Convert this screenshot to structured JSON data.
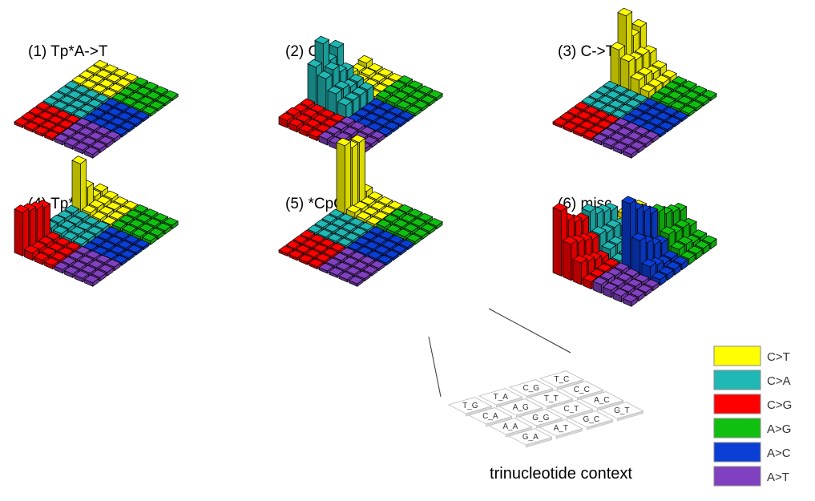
{
  "chart_data": {
    "type": "bar",
    "mutation_types": [
      "C>T",
      "C>A",
      "C>G",
      "A>G",
      "A>C",
      "A>T"
    ],
    "contexts": [
      "T_G",
      "T_A",
      "C_G",
      "T_C",
      "C_A",
      "A_G",
      "T_T",
      "C_C",
      "A_A",
      "G_G",
      "C_T",
      "A_C",
      "G_A",
      "A_T",
      "G_C",
      "G_T"
    ],
    "panels": [
      {
        "title": "(1) Tp*A->T",
        "values": {
          "C>T": [
            0.03,
            0.03,
            0.03,
            0.03,
            0.03,
            0.03,
            0.03,
            0.03,
            0.03,
            0.03,
            0.03,
            0.03,
            0.03,
            0.03,
            0.03,
            0.03
          ],
          "C>A": [
            0.03,
            0.03,
            0.03,
            0.03,
            0.03,
            0.03,
            0.03,
            0.03,
            0.03,
            0.03,
            0.03,
            0.03,
            0.03,
            0.03,
            0.03,
            0.03
          ],
          "C>G": [
            0.03,
            0.03,
            0.03,
            0.03,
            0.03,
            0.03,
            0.03,
            0.03,
            0.03,
            0.03,
            0.03,
            0.03,
            0.03,
            0.03,
            0.03,
            0.03
          ],
          "A>G": [
            0.03,
            0.03,
            0.03,
            0.03,
            0.03,
            0.03,
            0.03,
            0.03,
            0.03,
            0.03,
            0.03,
            0.03,
            0.03,
            0.03,
            0.03,
            0.03
          ],
          "A>C": [
            0.03,
            0.03,
            0.03,
            0.03,
            0.03,
            0.03,
            0.03,
            0.03,
            0.03,
            0.03,
            0.03,
            0.03,
            0.03,
            0.03,
            0.03,
            0.03
          ],
          "A>T": [
            0.05,
            0.05,
            0.05,
            0.05,
            0.05,
            0.05,
            0.05,
            0.05,
            0.05,
            0.05,
            0.05,
            0.05,
            0.05,
            0.05,
            0.05,
            0.05
          ]
        }
      },
      {
        "title": "(2) C->A",
        "values": {
          "C>T": [
            0.08,
            0.1,
            0.06,
            0.1,
            0.06,
            0.05,
            0.06,
            0.05,
            0.05,
            0.04,
            0.04,
            0.04,
            0.03,
            0.03,
            0.03,
            0.03
          ],
          "C>A": [
            0.55,
            0.8,
            0.5,
            0.6,
            0.45,
            0.5,
            0.4,
            0.35,
            0.3,
            0.3,
            0.25,
            0.25,
            0.2,
            0.2,
            0.2,
            0.2
          ],
          "C>G": [
            0.1,
            0.1,
            0.08,
            0.08,
            0.08,
            0.07,
            0.07,
            0.06,
            0.06,
            0.06,
            0.05,
            0.05,
            0.05,
            0.05,
            0.05,
            0.05
          ],
          "A>G": [
            0.07,
            0.07,
            0.06,
            0.06,
            0.06,
            0.05,
            0.05,
            0.05,
            0.05,
            0.04,
            0.04,
            0.04,
            0.04,
            0.04,
            0.04,
            0.04
          ],
          "A>C": [
            0.03,
            0.03,
            0.03,
            0.03,
            0.03,
            0.03,
            0.03,
            0.03,
            0.03,
            0.03,
            0.03,
            0.03,
            0.03,
            0.03,
            0.03,
            0.03
          ],
          "A>T": [
            0.08,
            0.08,
            0.07,
            0.07,
            0.07,
            0.06,
            0.06,
            0.06,
            0.06,
            0.05,
            0.05,
            0.05,
            0.05,
            0.05,
            0.05,
            0.05
          ]
        }
      },
      {
        "title": "(3) C->T",
        "values": {
          "C>T": [
            0.5,
            0.9,
            0.55,
            0.6,
            0.4,
            0.35,
            0.35,
            0.3,
            0.2,
            0.2,
            0.15,
            0.15,
            0.1,
            0.1,
            0.08,
            0.08
          ],
          "C>A": [
            0.03,
            0.03,
            0.03,
            0.03,
            0.03,
            0.03,
            0.03,
            0.03,
            0.03,
            0.03,
            0.03,
            0.03,
            0.03,
            0.03,
            0.03,
            0.03
          ],
          "C>G": [
            0.03,
            0.03,
            0.03,
            0.03,
            0.03,
            0.03,
            0.03,
            0.03,
            0.03,
            0.03,
            0.03,
            0.03,
            0.03,
            0.03,
            0.03,
            0.03
          ],
          "A>G": [
            0.05,
            0.05,
            0.05,
            0.05,
            0.05,
            0.05,
            0.05,
            0.05,
            0.04,
            0.04,
            0.04,
            0.04,
            0.04,
            0.04,
            0.04,
            0.04
          ],
          "A>C": [
            0.03,
            0.03,
            0.03,
            0.03,
            0.03,
            0.03,
            0.03,
            0.03,
            0.03,
            0.03,
            0.03,
            0.03,
            0.03,
            0.03,
            0.03,
            0.03
          ],
          "A>T": [
            0.05,
            0.05,
            0.05,
            0.05,
            0.05,
            0.05,
            0.05,
            0.05,
            0.05,
            0.05,
            0.05,
            0.05,
            0.05,
            0.05,
            0.05,
            0.05
          ]
        }
      },
      {
        "title": "(4) Tp*C->mut",
        "values": {
          "C>T": [
            0.7,
            0.3,
            0.1,
            0.1,
            0.08,
            0.08,
            0.06,
            0.06,
            0.05,
            0.05,
            0.04,
            0.04,
            0.04,
            0.04,
            0.04,
            0.04
          ],
          "C>A": [
            0.1,
            0.1,
            0.09,
            0.09,
            0.08,
            0.08,
            0.07,
            0.07,
            0.06,
            0.06,
            0.05,
            0.05,
            0.05,
            0.05,
            0.05,
            0.05
          ],
          "C>G": [
            0.6,
            0.55,
            0.5,
            0.45,
            0.1,
            0.08,
            0.08,
            0.07,
            0.06,
            0.06,
            0.05,
            0.05,
            0.05,
            0.05,
            0.05,
            0.05
          ],
          "A>G": [
            0.05,
            0.05,
            0.05,
            0.05,
            0.05,
            0.05,
            0.05,
            0.05,
            0.05,
            0.05,
            0.05,
            0.05,
            0.05,
            0.05,
            0.05,
            0.05
          ],
          "A>C": [
            0.03,
            0.03,
            0.03,
            0.03,
            0.03,
            0.03,
            0.03,
            0.03,
            0.03,
            0.03,
            0.03,
            0.03,
            0.03,
            0.03,
            0.03,
            0.03
          ],
          "A>T": [
            0.05,
            0.05,
            0.05,
            0.05,
            0.05,
            0.05,
            0.05,
            0.05,
            0.05,
            0.05,
            0.05,
            0.05,
            0.05,
            0.05,
            0.05,
            0.05
          ]
        }
      },
      {
        "title": "(5) *CpG->T",
        "values": {
          "C>T": [
            0.95,
            0.85,
            0.85,
            0.1,
            0.08,
            0.06,
            0.05,
            0.05,
            0.05,
            0.04,
            0.04,
            0.04,
            0.04,
            0.04,
            0.04,
            0.04
          ],
          "C>A": [
            0.03,
            0.03,
            0.03,
            0.03,
            0.03,
            0.03,
            0.03,
            0.03,
            0.03,
            0.03,
            0.03,
            0.03,
            0.03,
            0.03,
            0.03,
            0.03
          ],
          "C>G": [
            0.03,
            0.03,
            0.03,
            0.03,
            0.03,
            0.03,
            0.03,
            0.03,
            0.03,
            0.03,
            0.03,
            0.03,
            0.03,
            0.03,
            0.03,
            0.03
          ],
          "A>G": [
            0.06,
            0.06,
            0.06,
            0.05,
            0.05,
            0.05,
            0.05,
            0.05,
            0.05,
            0.05,
            0.05,
            0.05,
            0.04,
            0.04,
            0.04,
            0.04
          ],
          "A>C": [
            0.03,
            0.03,
            0.03,
            0.03,
            0.03,
            0.03,
            0.03,
            0.03,
            0.03,
            0.03,
            0.03,
            0.03,
            0.03,
            0.03,
            0.03,
            0.03
          ],
          "A>T": [
            0.03,
            0.03,
            0.03,
            0.03,
            0.03,
            0.03,
            0.03,
            0.03,
            0.03,
            0.03,
            0.03,
            0.03,
            0.03,
            0.03,
            0.03,
            0.03
          ]
        }
      },
      {
        "title": "(6) misc",
        "values": {
          "C>T": [
            0.15,
            0.2,
            0.18,
            0.15,
            0.12,
            0.1,
            0.12,
            0.1,
            0.1,
            0.08,
            0.08,
            0.07,
            0.06,
            0.06,
            0.05,
            0.05
          ],
          "C>A": [
            0.6,
            0.5,
            0.45,
            0.4,
            0.35,
            0.3,
            0.3,
            0.25,
            0.2,
            0.2,
            0.15,
            0.15,
            0.1,
            0.1,
            0.1,
            0.1
          ],
          "C>G": [
            0.9,
            0.7,
            0.6,
            0.55,
            0.5,
            0.45,
            0.4,
            0.35,
            0.3,
            0.25,
            0.2,
            0.15,
            0.1,
            0.1,
            0.1,
            0.1
          ],
          "A>G": [
            0.55,
            0.45,
            0.4,
            0.35,
            0.3,
            0.25,
            0.25,
            0.2,
            0.15,
            0.15,
            0.1,
            0.1,
            0.08,
            0.08,
            0.08,
            0.08
          ],
          "A>C": [
            0.95,
            0.8,
            0.7,
            0.6,
            0.5,
            0.4,
            0.3,
            0.25,
            0.2,
            0.15,
            0.1,
            0.1,
            0.08,
            0.08,
            0.08,
            0.08
          ],
          "A>T": [
            0.12,
            0.12,
            0.1,
            0.1,
            0.1,
            0.09,
            0.09,
            0.08,
            0.08,
            0.07,
            0.07,
            0.06,
            0.06,
            0.06,
            0.05,
            0.05
          ]
        }
      }
    ],
    "context_caption": "trinucleotide context",
    "legend": [
      "C>T",
      "C>A",
      "C>G",
      "A>G",
      "A>C",
      "A>T"
    ],
    "legend_placement": "bottom-right",
    "grid": false
  },
  "colors": {
    "C>T": "#ffff00",
    "C>A": "#1fb8b4",
    "C>G": "#ff0000",
    "A>G": "#10c010",
    "A>C": "#0a3fd6",
    "A>T": "#8040c0"
  }
}
